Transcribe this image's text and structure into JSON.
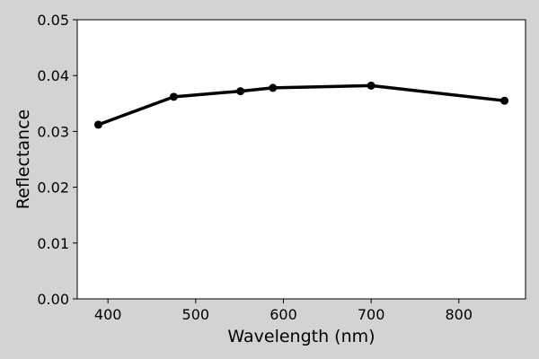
{
  "chart_data": {
    "type": "line",
    "title": "",
    "xlabel": "Wavelength (nm)",
    "ylabel": "Reflectance",
    "xlim": [
      365,
      876
    ],
    "ylim": [
      0,
      0.05
    ],
    "xticks": [
      400,
      500,
      600,
      700,
      800
    ],
    "xtick_labels": [
      "400",
      "500",
      "600",
      "700",
      "800"
    ],
    "yticks": [
      0,
      0.01,
      0.02,
      0.03,
      0.04,
      0.05
    ],
    "ytick_labels": [
      "0.00",
      "0.01",
      "0.02",
      "0.03",
      "0.04",
      "0.05"
    ],
    "grid": false,
    "series": [
      {
        "color": "#000000",
        "marker": "circle",
        "x": [
          389,
          475,
          551,
          588,
          700,
          852
        ],
        "y": [
          0.0312,
          0.0362,
          0.0372,
          0.0378,
          0.0382,
          0.0355
        ]
      }
    ]
  }
}
